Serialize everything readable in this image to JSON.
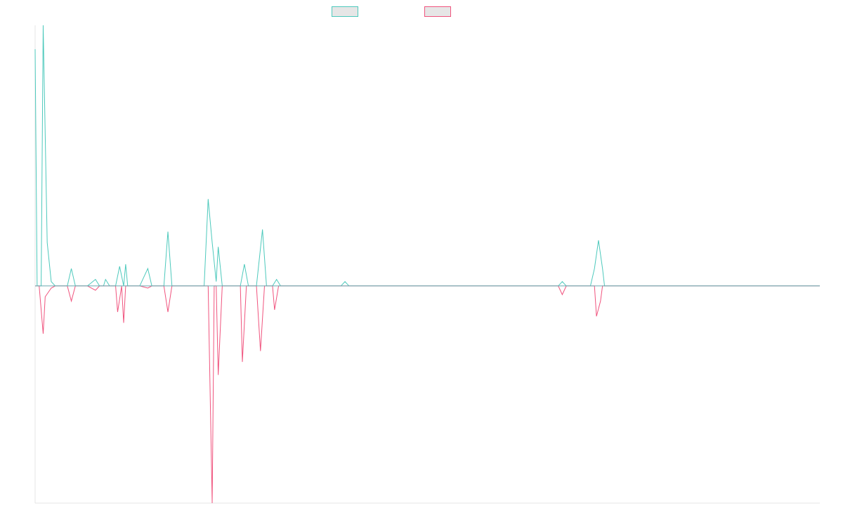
{
  "colors": {
    "series_positive": "#4dc9bc",
    "series_negative": "#f0547e",
    "axis": "#e5e5e5",
    "legend_fill": "#e6e6e6"
  },
  "chart_data": {
    "type": "line",
    "title": "",
    "xlabel": "",
    "ylabel": "",
    "grid": false,
    "legend_position": "top-center",
    "xlim": [
      0,
      195
    ],
    "ylim": [
      -1.0,
      1.2
    ],
    "series": [
      {
        "name": "",
        "color": "#4dc9bc",
        "points": [
          [
            0,
            1.09
          ],
          [
            0.5,
            0
          ],
          [
            1,
            0
          ],
          [
            1.5,
            0
          ],
          [
            2,
            1.2
          ],
          [
            3,
            0.2
          ],
          [
            4,
            0.02
          ],
          [
            5,
            0
          ],
          [
            6,
            0
          ],
          [
            8,
            0
          ],
          [
            9,
            0.08
          ],
          [
            10,
            0
          ],
          [
            13,
            0
          ],
          [
            15,
            0.03
          ],
          [
            16,
            0
          ],
          [
            17,
            0
          ],
          [
            17.5,
            0.03
          ],
          [
            18.5,
            0
          ],
          [
            20,
            0
          ],
          [
            21,
            0.09
          ],
          [
            22,
            0
          ],
          [
            22.5,
            0.1
          ],
          [
            23,
            0
          ],
          [
            26,
            0
          ],
          [
            28,
            0.08
          ],
          [
            29,
            0
          ],
          [
            30,
            0
          ],
          [
            32,
            0
          ],
          [
            33,
            0.25
          ],
          [
            34,
            0
          ],
          [
            42,
            0
          ],
          [
            43,
            0.4
          ],
          [
            44,
            0.2
          ],
          [
            45,
            0.02
          ],
          [
            45.5,
            0.18
          ],
          [
            46.5,
            0
          ],
          [
            51,
            0
          ],
          [
            52,
            0.1
          ],
          [
            53,
            0
          ],
          [
            55,
            0
          ],
          [
            56.5,
            0.26
          ],
          [
            57.5,
            0
          ],
          [
            59,
            0
          ],
          [
            60,
            0.03
          ],
          [
            61,
            0
          ],
          [
            70,
            0
          ],
          [
            76,
            0
          ],
          [
            77,
            0.02
          ],
          [
            78,
            0
          ],
          [
            82,
            0
          ],
          [
            84,
            0
          ],
          [
            130,
            0
          ],
          [
            131,
            0.02
          ],
          [
            132,
            0
          ],
          [
            138,
            0
          ],
          [
            139,
            0.08
          ],
          [
            140,
            0.21
          ],
          [
            141,
            0.08
          ],
          [
            141.5,
            0
          ],
          [
            195,
            0
          ]
        ]
      },
      {
        "name": "",
        "color": "#f0547e",
        "points": [
          [
            0,
            0
          ],
          [
            1,
            0
          ],
          [
            2,
            -0.22
          ],
          [
            2.5,
            -0.05
          ],
          [
            4,
            -0.01
          ],
          [
            5,
            0
          ],
          [
            8,
            0
          ],
          [
            9,
            -0.07
          ],
          [
            10,
            0
          ],
          [
            13,
            0
          ],
          [
            15,
            -0.02
          ],
          [
            16,
            0
          ],
          [
            20,
            0
          ],
          [
            20.5,
            -0.12
          ],
          [
            21.5,
            0
          ],
          [
            22,
            -0.17
          ],
          [
            22.5,
            0
          ],
          [
            26,
            0
          ],
          [
            28,
            -0.01
          ],
          [
            29,
            0
          ],
          [
            32,
            0
          ],
          [
            33,
            -0.12
          ],
          [
            34,
            0
          ],
          [
            43,
            0
          ],
          [
            44,
            -1.0
          ],
          [
            44.5,
            0
          ],
          [
            45,
            0
          ],
          [
            45.5,
            -0.41
          ],
          [
            46.5,
            0
          ],
          [
            51,
            0
          ],
          [
            51.5,
            -0.35
          ],
          [
            52.5,
            0
          ],
          [
            55,
            0
          ],
          [
            56,
            -0.3
          ],
          [
            57,
            0
          ],
          [
            59,
            0
          ],
          [
            59.5,
            -0.11
          ],
          [
            60.5,
            0
          ],
          [
            130,
            0
          ],
          [
            131,
            -0.04
          ],
          [
            132,
            0
          ],
          [
            139,
            0
          ],
          [
            139.5,
            -0.14
          ],
          [
            140.5,
            -0.07
          ],
          [
            141,
            0
          ],
          [
            195,
            0
          ]
        ]
      }
    ]
  }
}
